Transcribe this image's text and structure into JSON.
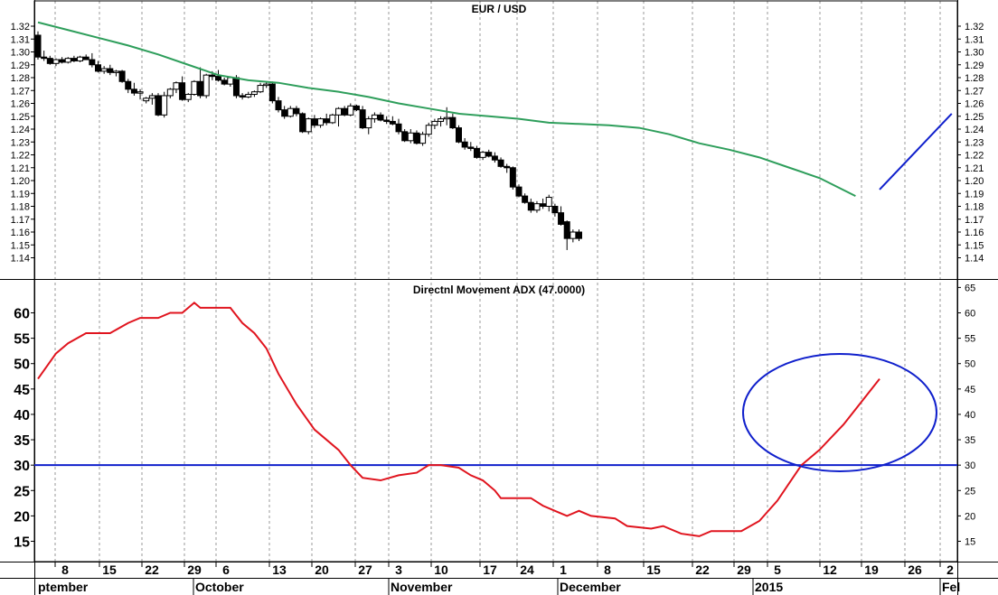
{
  "chart_data": [
    {
      "type": "candlestick",
      "title": "EUR / USD",
      "ylim": [
        1.135,
        1.335
      ],
      "yticks": [
        "1.14",
        "1.15",
        "1.16",
        "1.17",
        "1.18",
        "1.19",
        "1.20",
        "1.21",
        "1.22",
        "1.23",
        "1.24",
        "1.25",
        "1.26",
        "1.27",
        "1.28",
        "1.29",
        "1.30",
        "1.31",
        "1.32"
      ],
      "x_tick_labels": [
        "8",
        "15",
        "22",
        "29",
        "6",
        "13",
        "20",
        "27",
        "3",
        "10",
        "17",
        "24",
        "1",
        "8",
        "15",
        "22",
        "29",
        "5",
        "12",
        "19",
        "26",
        "2"
      ],
      "month_labels": [
        "ptember",
        "October",
        "November",
        "December",
        "2015",
        "Fel"
      ],
      "grid": true,
      "series": [
        {
          "kind": "ohlc",
          "values": [
            [
              1.313,
              1.316,
              1.294,
              1.296
            ],
            [
              1.296,
              1.301,
              1.293,
              1.295
            ],
            [
              1.295,
              1.297,
              1.29,
              1.291
            ],
            [
              1.291,
              1.295,
              1.289,
              1.294
            ],
            [
              1.294,
              1.296,
              1.291,
              1.292
            ],
            [
              1.292,
              1.296,
              1.291,
              1.295
            ],
            [
              1.295,
              1.297,
              1.292,
              1.293
            ],
            [
              1.293,
              1.297,
              1.292,
              1.296
            ],
            [
              1.296,
              1.298,
              1.294,
              1.294
            ],
            [
              1.294,
              1.299,
              1.288,
              1.29
            ],
            [
              1.29,
              1.293,
              1.284,
              1.285
            ],
            [
              1.285,
              1.289,
              1.283,
              1.287
            ],
            [
              1.287,
              1.29,
              1.282,
              1.284
            ],
            [
              1.284,
              1.286,
              1.281,
              1.285
            ],
            [
              1.285,
              1.286,
              1.276,
              1.277
            ],
            [
              1.277,
              1.279,
              1.268,
              1.271
            ],
            [
              1.271,
              1.276,
              1.266,
              1.268
            ],
            [
              1.268,
              1.271,
              1.263,
              1.269
            ],
            [
              1.262,
              1.265,
              1.26,
              1.264
            ],
            [
              1.264,
              1.268,
              1.259,
              1.266
            ],
            [
              1.266,
              1.268,
              1.25,
              1.251
            ],
            [
              1.251,
              1.269,
              1.249,
              1.266
            ],
            [
              1.266,
              1.272,
              1.264,
              1.271
            ],
            [
              1.271,
              1.277,
              1.268,
              1.276
            ],
            [
              1.276,
              1.281,
              1.262,
              1.263
            ],
            [
              1.263,
              1.268,
              1.261,
              1.267
            ],
            [
              1.267,
              1.278,
              1.266,
              1.277
            ],
            [
              1.277,
              1.288,
              1.264,
              1.266
            ],
            [
              1.266,
              1.283,
              1.264,
              1.282
            ],
            [
              1.282,
              1.285,
              1.278,
              1.281
            ],
            [
              1.281,
              1.286,
              1.277,
              1.278
            ],
            [
              1.278,
              1.28,
              1.274,
              1.275
            ],
            [
              1.275,
              1.281,
              1.273,
              1.28
            ],
            [
              1.28,
              1.282,
              1.264,
              1.266
            ],
            [
              1.266,
              1.268,
              1.263,
              1.265
            ],
            [
              1.265,
              1.269,
              1.264,
              1.267
            ],
            [
              1.267,
              1.27,
              1.265,
              1.269
            ],
            [
              1.269,
              1.276,
              1.268,
              1.274
            ],
            [
              1.274,
              1.277,
              1.272,
              1.275
            ],
            [
              1.275,
              1.277,
              1.26,
              1.262
            ],
            [
              1.262,
              1.265,
              1.253,
              1.255
            ],
            [
              1.255,
              1.258,
              1.248,
              1.25
            ],
            [
              1.25,
              1.258,
              1.249,
              1.256
            ],
            [
              1.256,
              1.258,
              1.25,
              1.252
            ],
            [
              1.252,
              1.253,
              1.237,
              1.238
            ],
            [
              1.238,
              1.249,
              1.236,
              1.248
            ],
            [
              1.248,
              1.251,
              1.241,
              1.243
            ],
            [
              1.243,
              1.249,
              1.241,
              1.248
            ],
            [
              1.248,
              1.252,
              1.243,
              1.245
            ],
            [
              1.245,
              1.252,
              1.244,
              1.251
            ],
            [
              1.251,
              1.257,
              1.242,
              1.256
            ],
            [
              1.256,
              1.258,
              1.25,
              1.251
            ],
            [
              1.251,
              1.26,
              1.25,
              1.258
            ],
            [
              1.258,
              1.259,
              1.254,
              1.255
            ],
            [
              1.255,
              1.258,
              1.24,
              1.241
            ],
            [
              1.241,
              1.25,
              1.236,
              1.248
            ],
            [
              1.248,
              1.253,
              1.245,
              1.251
            ],
            [
              1.251,
              1.253,
              1.246,
              1.247
            ],
            [
              1.247,
              1.25,
              1.244,
              1.246
            ],
            [
              1.246,
              1.25,
              1.243,
              1.244
            ],
            [
              1.244,
              1.248,
              1.236,
              1.238
            ],
            [
              1.238,
              1.24,
              1.23,
              1.231
            ],
            [
              1.231,
              1.24,
              1.229,
              1.237
            ],
            [
              1.237,
              1.239,
              1.228,
              1.229
            ],
            [
              1.229,
              1.238,
              1.227,
              1.236
            ],
            [
              1.236,
              1.245,
              1.234,
              1.243
            ],
            [
              1.243,
              1.248,
              1.24,
              1.246
            ],
            [
              1.246,
              1.25,
              1.242,
              1.248
            ],
            [
              1.248,
              1.257,
              1.243,
              1.249
            ],
            [
              1.249,
              1.252,
              1.24,
              1.241
            ],
            [
              1.241,
              1.243,
              1.229,
              1.23
            ],
            [
              1.23,
              1.233,
              1.224,
              1.226
            ],
            [
              1.226,
              1.23,
              1.223,
              1.225
            ],
            [
              1.225,
              1.227,
              1.217,
              1.218
            ],
            [
              1.218,
              1.223,
              1.216,
              1.222
            ],
            [
              1.222,
              1.224,
              1.218,
              1.219
            ],
            [
              1.219,
              1.222,
              1.214,
              1.216
            ],
            [
              1.216,
              1.218,
              1.21,
              1.211
            ],
            [
              1.211,
              1.213,
              1.206,
              1.21
            ],
            [
              1.21,
              1.211,
              1.193,
              1.195
            ],
            [
              1.195,
              1.197,
              1.187,
              1.188
            ],
            [
              1.188,
              1.19,
              1.182,
              1.183
            ],
            [
              1.183,
              1.186,
              1.175,
              1.177
            ],
            [
              1.177,
              1.184,
              1.175,
              1.182
            ],
            [
              1.182,
              1.186,
              1.178,
              1.18
            ],
            [
              1.18,
              1.189,
              1.176,
              1.187
            ],
            [
              1.18,
              1.182,
              1.172,
              1.175
            ],
            [
              1.175,
              1.18,
              1.165,
              1.166
            ],
            [
              1.168,
              1.169,
              1.146,
              1.155
            ],
            [
              1.155,
              1.162,
              1.152,
              1.16
            ],
            [
              1.16,
              1.162,
              1.153,
              1.155
            ]
          ]
        },
        {
          "kind": "moving_average",
          "values": [
            [
              0,
              1.323
            ],
            [
              5,
              1.317
            ],
            [
              10,
              1.311
            ],
            [
              15,
              1.305
            ],
            [
              20,
              1.298
            ],
            [
              25,
              1.29
            ],
            [
              30,
              1.282
            ],
            [
              35,
              1.278
            ],
            [
              40,
              1.276
            ],
            [
              45,
              1.272
            ],
            [
              50,
              1.269
            ],
            [
              55,
              1.265
            ],
            [
              60,
              1.26
            ],
            [
              65,
              1.256
            ],
            [
              70,
              1.252
            ],
            [
              75,
              1.25
            ],
            [
              80,
              1.248
            ],
            [
              85,
              1.245
            ],
            [
              90,
              1.244
            ],
            [
              95,
              1.243
            ],
            [
              100,
              1.241
            ],
            [
              105,
              1.236
            ],
            [
              110,
              1.229
            ],
            [
              115,
              1.224
            ],
            [
              120,
              1.218
            ],
            [
              125,
              1.21
            ],
            [
              130,
              1.202
            ],
            [
              133,
              1.195
            ],
            [
              136,
              1.188
            ]
          ]
        },
        {
          "kind": "projection_line",
          "values": [
            [
              140,
              1.193
            ],
            [
              152,
              1.252
            ]
          ]
        }
      ]
    },
    {
      "type": "line",
      "title": "Directnl Movement ADX (47.0000)",
      "ylim": [
        10.5,
        66
      ],
      "yticks_left": [
        "15",
        "20",
        "25",
        "30",
        "35",
        "40",
        "45",
        "50",
        "55",
        "60"
      ],
      "yticks_right": [
        "15",
        "20",
        "25",
        "30",
        "35",
        "40",
        "45",
        "50",
        "55",
        "60",
        "65"
      ],
      "grid": true,
      "reference_line": 30,
      "series": [
        {
          "kind": "adx",
          "values": [
            [
              0,
              47
            ],
            [
              3,
              52
            ],
            [
              5,
              54
            ],
            [
              8,
              56
            ],
            [
              12,
              56
            ],
            [
              15,
              58
            ],
            [
              17,
              59
            ],
            [
              20,
              59
            ],
            [
              22,
              60
            ],
            [
              24,
              60
            ],
            [
              26,
              62
            ],
            [
              27,
              61
            ],
            [
              32,
              61
            ],
            [
              34,
              58
            ],
            [
              36,
              56
            ],
            [
              38,
              53
            ],
            [
              40,
              48
            ],
            [
              43,
              42
            ],
            [
              46,
              37
            ],
            [
              48,
              35
            ],
            [
              50,
              33
            ],
            [
              52,
              30
            ],
            [
              54,
              27.5
            ],
            [
              57,
              27
            ],
            [
              60,
              28
            ],
            [
              63,
              28.5
            ],
            [
              65,
              30
            ],
            [
              67,
              30
            ],
            [
              70,
              29.5
            ],
            [
              72,
              28
            ],
            [
              74,
              27
            ],
            [
              76,
              25
            ],
            [
              77,
              23.5
            ],
            [
              82,
              23.5
            ],
            [
              84,
              22
            ],
            [
              86,
              21
            ],
            [
              88,
              20
            ],
            [
              90,
              21
            ],
            [
              92,
              20
            ],
            [
              96,
              19.5
            ],
            [
              98,
              18
            ],
            [
              102,
              17.5
            ],
            [
              104,
              18
            ],
            [
              107,
              16.5
            ],
            [
              110,
              16
            ],
            [
              112,
              17
            ],
            [
              117,
              17
            ],
            [
              120,
              19
            ],
            [
              123,
              23
            ],
            [
              125,
              26.5
            ],
            [
              127,
              30
            ],
            [
              130,
              33
            ],
            [
              132,
              35.5
            ],
            [
              134,
              38
            ],
            [
              136,
              41
            ],
            [
              138,
              44
            ],
            [
              140,
              47
            ]
          ]
        }
      ],
      "annotation": "ellipse"
    }
  ]
}
